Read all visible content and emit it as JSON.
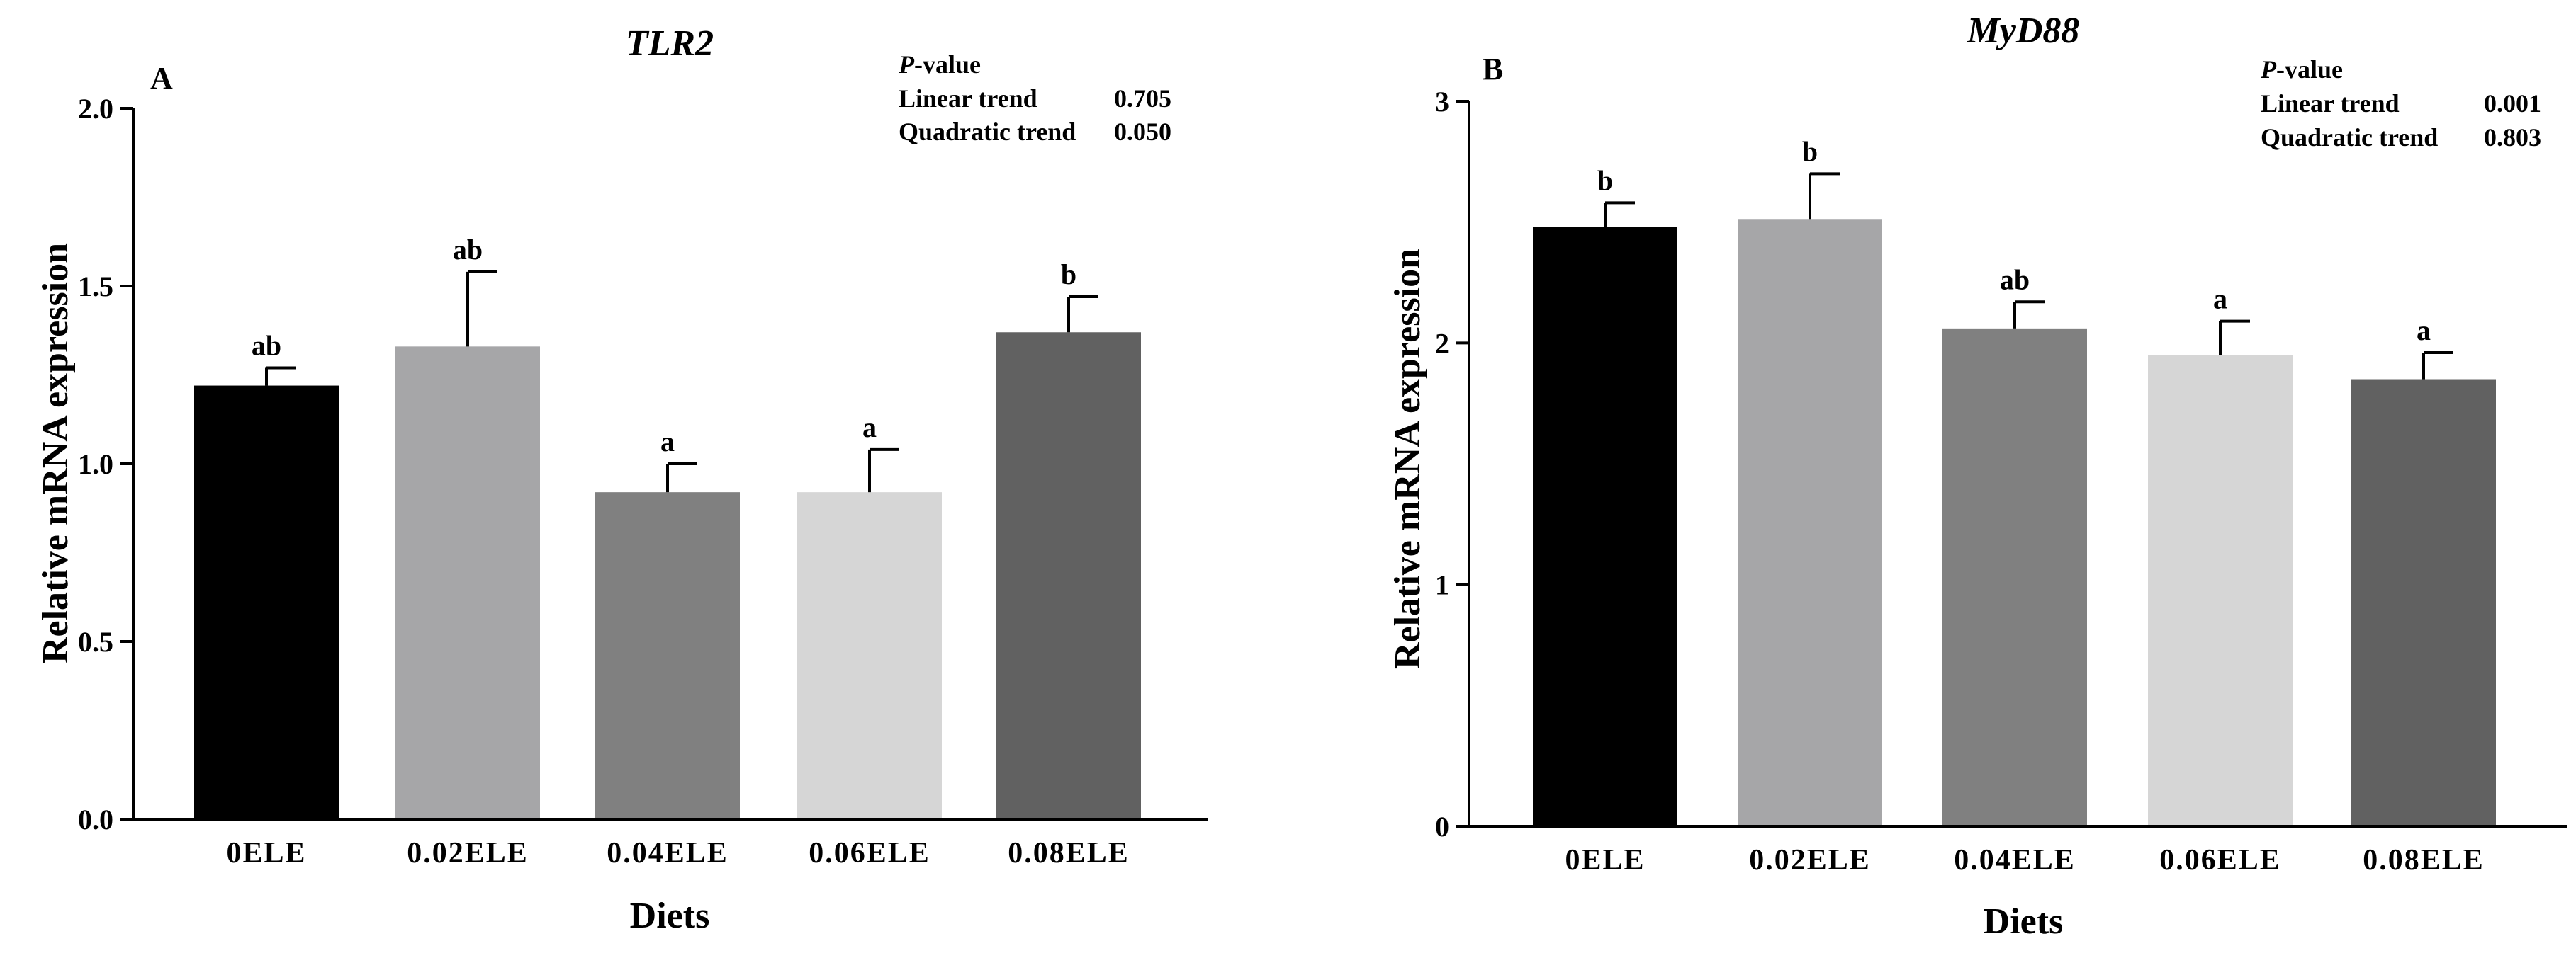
{
  "chart_data": [
    {
      "type": "bar",
      "panel_label": "A",
      "title": "TLR2",
      "xlabel": "Diets",
      "ylabel": "Relative mRNA expression",
      "ylim": [
        0,
        2.0
      ],
      "yticks": [
        "0.0",
        "0.5",
        "1.0",
        "1.5",
        "2.0"
      ],
      "ytick_values": [
        0,
        0.5,
        1.0,
        1.5,
        2.0
      ],
      "categories": [
        "0ELE",
        "0.02ELE",
        "0.04ELE",
        "0.06ELE",
        "0.08ELE"
      ],
      "values": [
        1.22,
        1.33,
        0.92,
        0.92,
        1.37
      ],
      "errors": [
        0.05,
        0.21,
        0.08,
        0.12,
        0.1
      ],
      "letters": [
        "ab",
        "ab",
        "a",
        "a",
        "b"
      ],
      "colors": [
        "#000000",
        "#a6a6a8",
        "#808080",
        "#d6d6d6",
        "#616161"
      ],
      "stats": {
        "header_italic": "P",
        "header_rest": "-value",
        "rows": [
          {
            "label": "Linear trend",
            "value": "0.705"
          },
          {
            "label": "Quadratic trend",
            "value": "0.050"
          }
        ]
      }
    },
    {
      "type": "bar",
      "panel_label": "B",
      "title": "MyD88",
      "xlabel": "Diets",
      "ylabel": "Relative mRNA expression",
      "ylim": [
        0,
        3
      ],
      "yticks": [
        "0",
        "1",
        "2",
        "3"
      ],
      "ytick_values": [
        0,
        1,
        2,
        3
      ],
      "categories": [
        "0ELE",
        "0.02ELE",
        "0.04ELE",
        "0.06ELE",
        "0.08ELE"
      ],
      "values": [
        2.48,
        2.51,
        2.06,
        1.95,
        1.85
      ],
      "errors": [
        0.1,
        0.19,
        0.11,
        0.14,
        0.11
      ],
      "letters": [
        "b",
        "b",
        "ab",
        "a",
        "a"
      ],
      "colors": [
        "#000000",
        "#a6a6a8",
        "#808080",
        "#d6d6d6",
        "#616161"
      ],
      "stats": {
        "header_italic": "P",
        "header_rest": "-value",
        "rows": [
          {
            "label": "Linear trend",
            "value": "0.001"
          },
          {
            "label": "Quadratic trend",
            "value": "0.803"
          }
        ]
      }
    }
  ]
}
